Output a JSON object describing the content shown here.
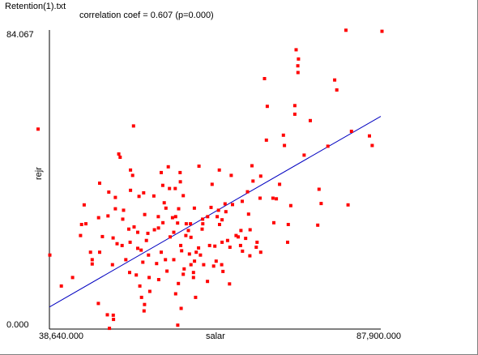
{
  "window": {
    "title": "Retention(1).txt"
  },
  "stats": {
    "correlation_text": "correlation coef = 0.607  (p=0.000)"
  },
  "colors": {
    "points": "#ff0000",
    "fit_line": "#0000c0",
    "axis": "#000000"
  },
  "chart_data": {
    "type": "scatter",
    "title": "",
    "xlabel": "salar",
    "ylabel": "rejr",
    "xlim": [
      38640,
      87900
    ],
    "ylim": [
      0,
      84.067
    ],
    "x_tick_labels": [
      "38,640.000",
      "87,900.000"
    ],
    "y_tick_labels": [
      "84.067",
      "0.000"
    ],
    "grid": false,
    "fit_line": {
      "x": [
        38640,
        87900
      ],
      "y": [
        6.2,
        59.8
      ]
    },
    "points": [
      [
        38703,
        20.8
      ],
      [
        40415,
        12.1
      ],
      [
        42090,
        14.5
      ],
      [
        45004,
        19.5
      ],
      [
        47249,
        4.0
      ],
      [
        47565,
        0.2
      ],
      [
        48007,
        18.1
      ],
      [
        50632,
        24.4
      ],
      [
        48449,
        37.0
      ],
      [
        48701,
        24.0
      ],
      [
        48953,
        49.2
      ],
      [
        49158,
        48.3
      ],
      [
        49536,
        30.9
      ],
      [
        50001,
        19.5
      ],
      [
        50695,
        39.0
      ],
      [
        49662,
        33.4
      ],
      [
        49442,
        23.5
      ],
      [
        51010,
        43.2
      ],
      [
        51137,
        57.1
      ],
      [
        50443,
        28.1
      ],
      [
        51767,
        22.7
      ],
      [
        52270,
        22.2
      ],
      [
        52522,
        18.8
      ],
      [
        51546,
        15.2
      ],
      [
        53467,
        14.5
      ],
      [
        53057,
        24.9
      ],
      [
        53372,
        20.8
      ],
      [
        50569,
        15.9
      ],
      [
        52711,
        5.1
      ],
      [
        52775,
        6.9
      ],
      [
        52081,
        12.1
      ],
      [
        53561,
        10.6
      ],
      [
        54884,
        13.9
      ],
      [
        52333,
        8.9
      ],
      [
        54570,
        18.4
      ],
      [
        54822,
        31.6
      ],
      [
        55263,
        21.6
      ],
      [
        56114,
        16.3
      ],
      [
        56587,
        25.9
      ],
      [
        55956,
        34.0
      ],
      [
        56493,
        39.5
      ],
      [
        57124,
        27.2
      ],
      [
        57691,
        29.8
      ],
      [
        57124,
        19.5
      ],
      [
        57817,
        12.8
      ],
      [
        57407,
        9.9
      ],
      [
        58227,
        5.8
      ],
      [
        57723,
        1.1
      ],
      [
        58542,
        15.4
      ],
      [
        58668,
        16.9
      ],
      [
        55704,
        35.5
      ],
      [
        56303,
        45.6
      ],
      [
        57848,
        33.8
      ],
      [
        58069,
        44.0
      ],
      [
        58290,
        22.0
      ],
      [
        58920,
        26.3
      ],
      [
        59298,
        27.7
      ],
      [
        59676,
        18.1
      ],
      [
        59676,
        25.8
      ],
      [
        60181,
        34.0
      ],
      [
        60213,
        19.1
      ],
      [
        60055,
        14.5
      ],
      [
        60370,
        8.9
      ],
      [
        60464,
        21.6
      ],
      [
        60874,
        45.8
      ],
      [
        61442,
        29.6
      ],
      [
        61410,
        30.9
      ],
      [
        61347,
        28.1
      ],
      [
        61568,
        18.1
      ],
      [
        62135,
        13.4
      ],
      [
        62167,
        31.6
      ],
      [
        62451,
        23.5
      ],
      [
        62671,
        34.2
      ],
      [
        62829,
        40.7
      ],
      [
        63050,
        17.7
      ],
      [
        63586,
        31.6
      ],
      [
        63774,
        33.4
      ],
      [
        63932,
        29.4
      ],
      [
        64247,
        18.1
      ],
      [
        64436,
        16.2
      ],
      [
        64310,
        24.4
      ],
      [
        65129,
        24.9
      ],
      [
        64310,
        30.7
      ],
      [
        64877,
        33.0
      ],
      [
        64751,
        35.2
      ],
      [
        65413,
        12.7
      ],
      [
        65476,
        23.0
      ],
      [
        65854,
        35.0
      ],
      [
        65665,
        43.2
      ],
      [
        66706,
        25.9
      ],
      [
        67053,
        23.5
      ],
      [
        66391,
        26.3
      ],
      [
        67116,
        27.7
      ],
      [
        67305,
        35.9
      ],
      [
        67336,
        21.9
      ],
      [
        67809,
        25.5
      ],
      [
        68092,
        38.6
      ],
      [
        68250,
        32.3
      ],
      [
        68439,
        20.6
      ],
      [
        68471,
        27.9
      ],
      [
        68754,
        45.9
      ],
      [
        68912,
        41.6
      ],
      [
        69385,
        23.0
      ],
      [
        69511,
        24.4
      ],
      [
        69952,
        36.8
      ],
      [
        70046,
        21.6
      ],
      [
        70047,
        43.0
      ],
      [
        70897,
        53.1
      ],
      [
        71023,
        62.6
      ],
      [
        70613,
        70.4
      ],
      [
        71874,
        36.8
      ],
      [
        72001,
        29.9
      ],
      [
        72379,
        36.6
      ],
      [
        72852,
        40.7
      ],
      [
        73419,
        54.5
      ],
      [
        73577,
        51.6
      ],
      [
        74050,
        24.4
      ],
      [
        74523,
        34.7
      ],
      [
        74145,
        29.4
      ],
      [
        75122,
        60.4
      ],
      [
        75122,
        62.8
      ],
      [
        75565,
        74.0
      ],
      [
        75660,
        75.9
      ],
      [
        75313,
        78.5
      ],
      [
        75597,
        72.1
      ],
      [
        76511,
        48.9
      ],
      [
        77425,
        58.6
      ],
      [
        78717,
        39.3
      ],
      [
        78528,
        29.2
      ],
      [
        79031,
        35.3
      ],
      [
        80041,
        51.4
      ],
      [
        81050,
        70.0
      ],
      [
        81366,
        67.2
      ],
      [
        82721,
        84.0
      ],
      [
        83036,
        34.9
      ],
      [
        83540,
        55.6
      ],
      [
        86219,
        54.3
      ],
      [
        86629,
        51.6
      ],
      [
        88079,
        83.7
      ],
      [
        36956,
        56.2
      ],
      [
        45004,
        18.3
      ],
      [
        44058,
        29.6
      ],
      [
        43427,
        29.4
      ],
      [
        45950,
        31.3
      ],
      [
        46518,
        26.0
      ],
      [
        48448,
        33.8
      ],
      [
        46108,
        21.6
      ],
      [
        45919,
        7.2
      ],
      [
        43806,
        34.9
      ],
      [
        44751,
        21.6
      ],
      [
        43269,
        26.3
      ],
      [
        46108,
        41.0
      ],
      [
        48101,
        25.6
      ],
      [
        47343,
        31.8
      ],
      [
        51231,
        28.7
      ],
      [
        51767,
        27.2
      ],
      [
        53278,
        26.9
      ],
      [
        52805,
        32.2
      ],
      [
        55515,
        29.9
      ],
      [
        55484,
        40.4
      ],
      [
        58164,
        23.5
      ],
      [
        55893,
        19.5
      ],
      [
        60055,
        15.9
      ],
      [
        58101,
        41.4
      ],
      [
        58983,
        29.6
      ],
      [
        57407,
        31.6
      ],
      [
        59456,
        21.1
      ],
      [
        59614,
        29.6
      ],
      [
        61095,
        20.8
      ],
      [
        54853,
        28.4
      ],
      [
        56934,
        31.3
      ],
      [
        54254,
        27.9
      ],
      [
        52648,
        38.3
      ],
      [
        51956,
        37.3
      ],
      [
        57344,
        39.5
      ],
      [
        55263,
        44.0
      ],
      [
        54160,
        37.4
      ],
      [
        48165,
        2.7
      ],
      [
        48134,
        3.9
      ],
      [
        47470,
        38.5
      ],
      [
        50695,
        44.7
      ],
      [
        58542,
        37.5
      ],
      [
        60812,
        22.8
      ],
      [
        63901,
        44.7
      ],
      [
        63239,
        23.3
      ],
      [
        63428,
        19.1
      ]
    ]
  }
}
